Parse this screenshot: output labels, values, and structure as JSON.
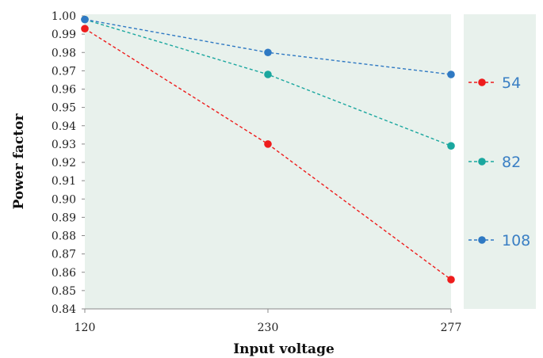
{
  "chart_data": {
    "type": "line",
    "title": "",
    "xlabel": "Input voltage",
    "ylabel": "Power factor",
    "categories": [
      "120",
      "230",
      "277"
    ],
    "ylim": [
      0.84,
      1.0
    ],
    "yticks": [
      "0.84",
      "0.85",
      "0.86",
      "0.87",
      "0.88",
      "0.89",
      "0.90",
      "0.91",
      "0.92",
      "0.93",
      "0.94",
      "0.95",
      "0.96",
      "0.97",
      "0.98",
      "0.99",
      "1.00"
    ],
    "grid": false,
    "legend_position": "right",
    "plot_background": "#e8f1ec",
    "series": [
      {
        "name": "54",
        "color": "#ee1c1c",
        "values": [
          0.993,
          0.93,
          0.856
        ]
      },
      {
        "name": "82",
        "color": "#1aa79f",
        "values": [
          0.998,
          0.968,
          0.929
        ]
      },
      {
        "name": "108",
        "color": "#2f79c3",
        "values": [
          0.998,
          0.98,
          0.968
        ]
      }
    ]
  }
}
